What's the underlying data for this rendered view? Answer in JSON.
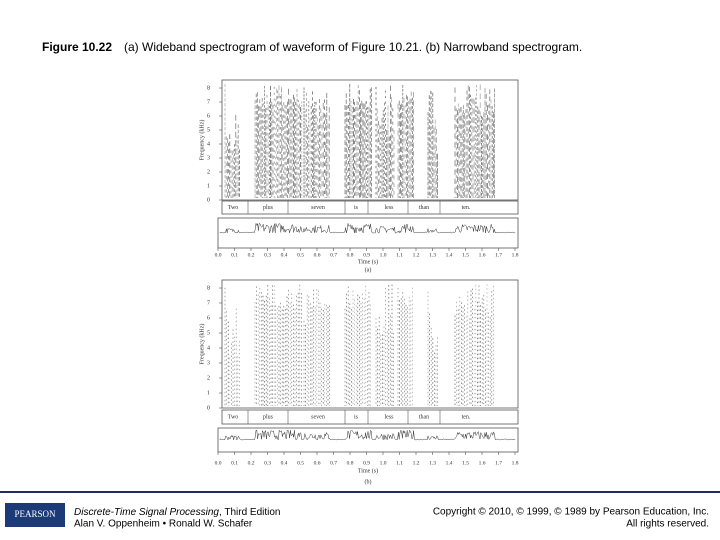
{
  "header": {
    "figure_label": "Figure 10.22",
    "caption": "(a) Wideband spectrogram of waveform of Figure 10.21. (b) Narrowband spectrogram."
  },
  "figure": {
    "panels": [
      {
        "label": "(a)",
        "y_axis_label": "Frequency (kHz)",
        "x_axis_label": "Time (s)",
        "yticks": [
          "0",
          "1",
          "2",
          "3",
          "4",
          "5",
          "6",
          "7",
          "8"
        ],
        "xticks": [
          "0.0",
          "0.1",
          "0.2",
          "0.3",
          "0.4",
          "0.5",
          "0.6",
          "0.7",
          "0.8",
          "0.9",
          "1.0",
          "1.1",
          "1.2",
          "1.3",
          "1.4",
          "1.5",
          "1.6",
          "1.7",
          "1.8"
        ],
        "words": [
          "Two",
          "plus",
          "seven",
          "is",
          "less",
          "than",
          "ten."
        ]
      },
      {
        "label": "(b)",
        "y_axis_label": "Frequency (kHz)",
        "x_axis_label": "Time (s)",
        "yticks": [
          "0",
          "1",
          "2",
          "3",
          "4",
          "5",
          "6",
          "7",
          "8"
        ],
        "xticks": [
          "0.0",
          "0.1",
          "0.2",
          "0.3",
          "0.4",
          "0.5",
          "0.6",
          "0.7",
          "0.8",
          "0.9",
          "1.0",
          "1.1",
          "1.2",
          "1.3",
          "1.4",
          "1.5",
          "1.6",
          "1.7",
          "1.8"
        ],
        "words": [
          "Two",
          "plus",
          "seven",
          "is",
          "less",
          "than",
          "ten."
        ]
      }
    ]
  },
  "footer": {
    "logo": "PEARSON",
    "book_title": "Discrete-Time Signal Processing",
    "edition": ", Third Edition",
    "authors": "Alan V. Oppenheim • Ronald W. Schafer",
    "copyright": "Copyright © 2010, © 1999, © 1989 by Pearson Education, Inc.",
    "rights": "All rights reserved."
  }
}
